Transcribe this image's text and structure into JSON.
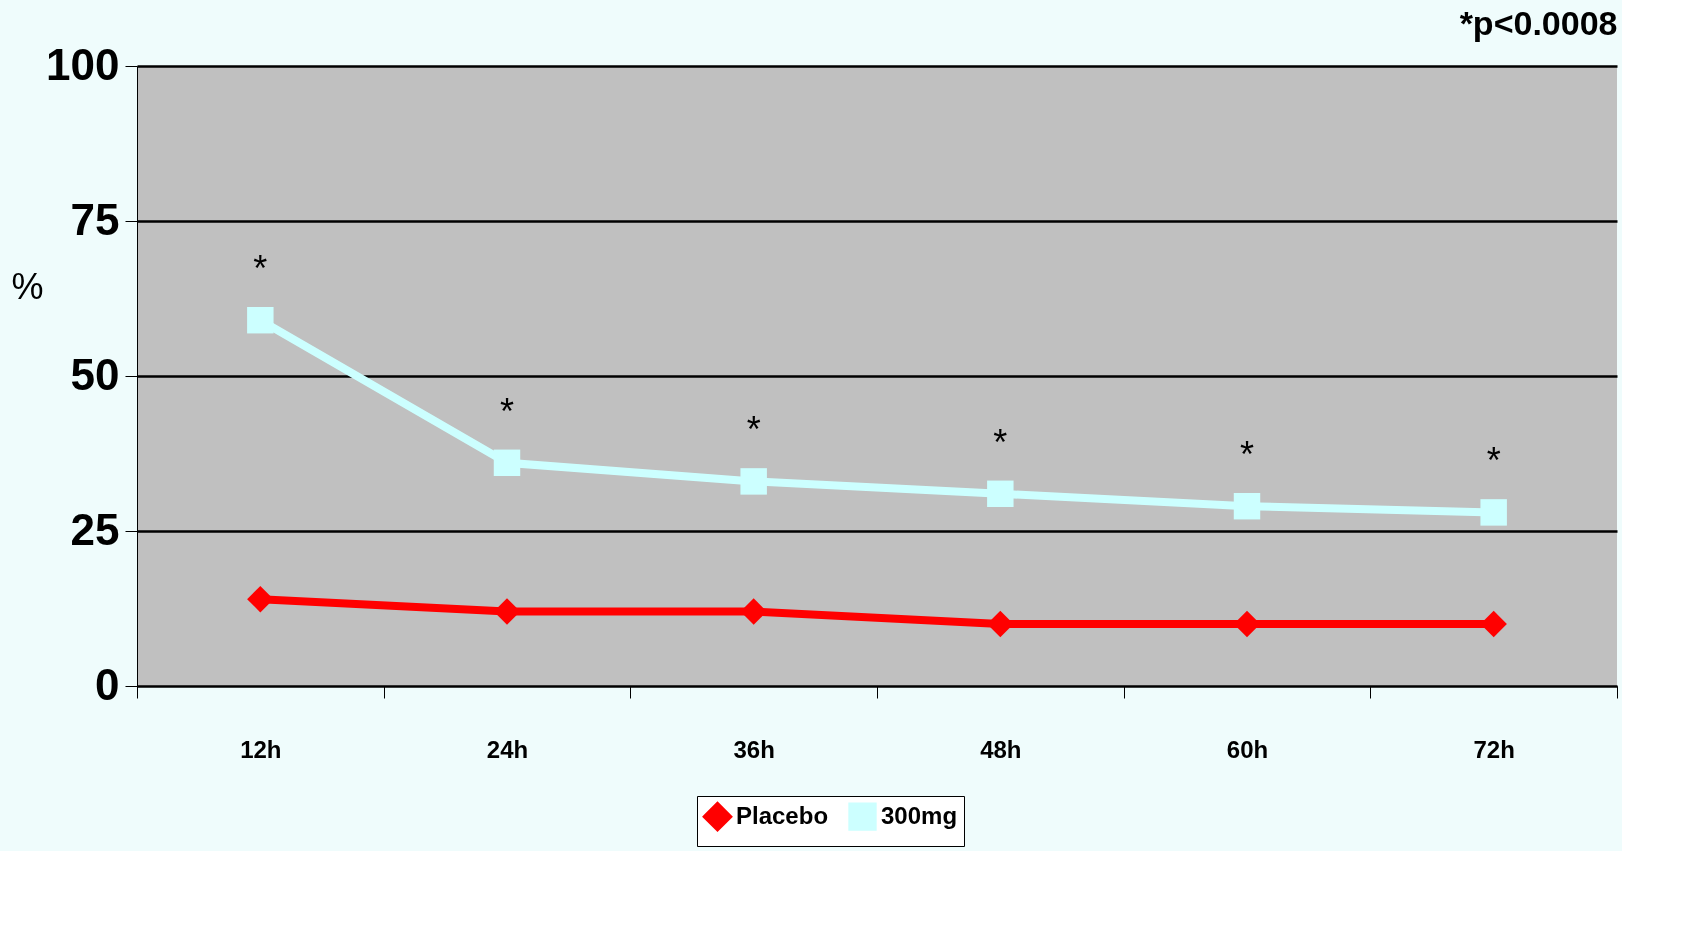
{
  "chart_data": {
    "type": "line",
    "ylabel": "%",
    "categories": [
      "12h",
      "24h",
      "36h",
      "48h",
      "60h",
      "72h"
    ],
    "series": [
      {
        "name": "Placebo",
        "color": "#ff0000",
        "marker": "diamond",
        "values": [
          14,
          12,
          12,
          10,
          10,
          10
        ]
      },
      {
        "name": "300mg",
        "color": "#ccffff",
        "marker": "square",
        "values": [
          59,
          36,
          33,
          31,
          29,
          28
        ]
      }
    ],
    "ylim": [
      0,
      100
    ],
    "yticks": [
      0,
      25,
      50,
      75,
      100
    ],
    "grid": "y",
    "legend": "bottom",
    "annotations": [
      "*p<0.0008",
      {
        "text": "*",
        "x": "12h",
        "y": 59
      },
      {
        "text": "*",
        "x": "24h",
        "y": 36
      },
      {
        "text": "*",
        "x": "36h",
        "y": 33
      },
      {
        "text": "*",
        "x": "48h",
        "y": 31
      },
      {
        "text": "*",
        "x": "60h",
        "y": 29
      },
      {
        "text": "*",
        "x": "72h",
        "y": 28
      }
    ]
  }
}
